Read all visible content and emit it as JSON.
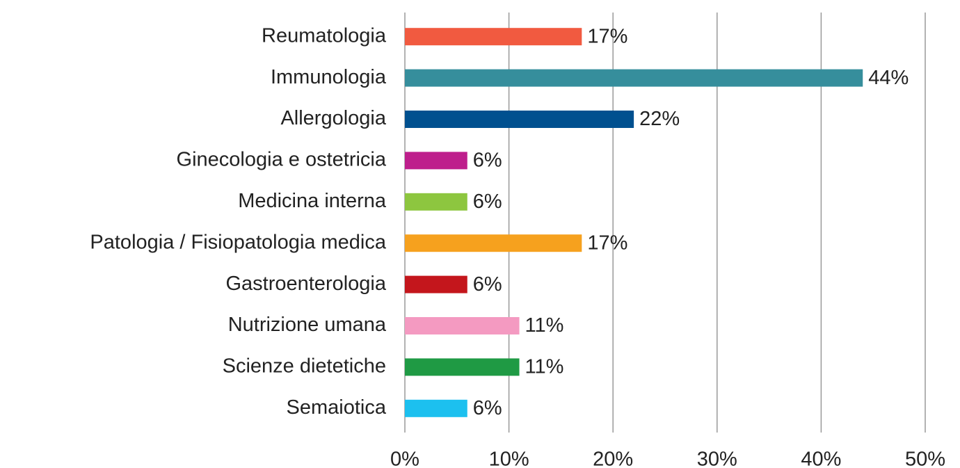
{
  "chart_data": {
    "type": "barh",
    "categories": [
      "Reumatologia",
      "Immunologia",
      "Allergologia",
      "Ginecologia e ostetricia",
      "Medicina interna",
      "Patologia / Fisiopatologia medica",
      "Gastroenterologia",
      "Nutrizione umana",
      "Scienze dietetiche",
      "Semaiotica"
    ],
    "values": [
      17,
      44,
      22,
      6,
      6,
      17,
      6,
      11,
      11,
      6
    ],
    "value_labels": [
      "17%",
      "44%",
      "22%",
      "6%",
      "6%",
      "17%",
      "6%",
      "11%",
      "11%",
      "6%"
    ],
    "colors": [
      "#f15a40",
      "#368e9c",
      "#00508f",
      "#be1e8c",
      "#8dc63f",
      "#f6a11e",
      "#c4161c",
      "#f49ac1",
      "#1f9a44",
      "#1cc0ef"
    ],
    "xlim": [
      0,
      50
    ],
    "xticks": [
      {
        "value": 0,
        "label": "0%"
      },
      {
        "value": 10,
        "label": "10%"
      },
      {
        "value": 20,
        "label": "20%"
      },
      {
        "value": 30,
        "label": "30%"
      },
      {
        "value": 40,
        "label": "40%"
      },
      {
        "value": 50,
        "label": "50%"
      }
    ],
    "grid": true
  }
}
